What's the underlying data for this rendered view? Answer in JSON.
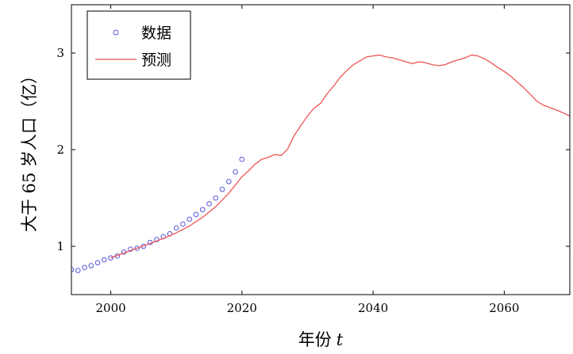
{
  "chart_data": {
    "type": "line",
    "title": "",
    "xlabel": "年份",
    "xlabel_var": "t",
    "ylabel": "大于 65 岁人口（亿）",
    "xlim": [
      1994,
      2070
    ],
    "ylim": [
      0.5,
      3.5
    ],
    "xticks": [
      2000,
      2020,
      2040,
      2060
    ],
    "yticks": [
      1,
      2,
      3
    ],
    "grid": false,
    "legend_position": "top-left",
    "series": [
      {
        "name": "数据",
        "kind": "scatter",
        "color": "#5555dd",
        "x": [
          1994,
          1995,
          1996,
          1997,
          1998,
          1999,
          2000,
          2001,
          2002,
          2003,
          2004,
          2005,
          2006,
          2007,
          2008,
          2009,
          2010,
          2011,
          2012,
          2013,
          2014,
          2015,
          2016,
          2017,
          2018,
          2019,
          2020
        ],
        "y": [
          0.76,
          0.75,
          0.78,
          0.8,
          0.83,
          0.86,
          0.88,
          0.9,
          0.94,
          0.97,
          0.98,
          1.0,
          1.04,
          1.07,
          1.1,
          1.13,
          1.19,
          1.23,
          1.28,
          1.33,
          1.38,
          1.44,
          1.5,
          1.59,
          1.67,
          1.77,
          1.9
        ]
      },
      {
        "name": "预测",
        "kind": "line",
        "color": "#ee5555",
        "x": [
          2000,
          2002,
          2004,
          2006,
          2008,
          2010,
          2012,
          2014,
          2016,
          2018,
          2020,
          2021,
          2022,
          2023,
          2024,
          2025,
          2026,
          2027,
          2028,
          2029,
          2030,
          2031,
          2032,
          2033,
          2034,
          2035,
          2036,
          2037,
          2038,
          2039,
          2040,
          2041,
          2042,
          2043,
          2044,
          2045,
          2046,
          2047,
          2048,
          2049,
          2050,
          2051,
          2052,
          2053,
          2054,
          2055,
          2056,
          2057,
          2058,
          2059,
          2060,
          2061,
          2062,
          2063,
          2064,
          2065,
          2066,
          2068,
          2070
        ],
        "y": [
          0.88,
          0.93,
          0.98,
          1.03,
          1.08,
          1.14,
          1.21,
          1.3,
          1.41,
          1.55,
          1.72,
          1.78,
          1.85,
          1.9,
          1.92,
          1.95,
          1.94,
          2.01,
          2.15,
          2.25,
          2.35,
          2.43,
          2.48,
          2.58,
          2.66,
          2.75,
          2.82,
          2.88,
          2.92,
          2.96,
          2.97,
          2.98,
          2.96,
          2.95,
          2.93,
          2.91,
          2.89,
          2.91,
          2.9,
          2.88,
          2.87,
          2.88,
          2.91,
          2.93,
          2.95,
          2.98,
          2.97,
          2.94,
          2.9,
          2.85,
          2.81,
          2.76,
          2.7,
          2.64,
          2.57,
          2.5,
          2.46,
          2.41,
          2.35
        ]
      }
    ]
  }
}
